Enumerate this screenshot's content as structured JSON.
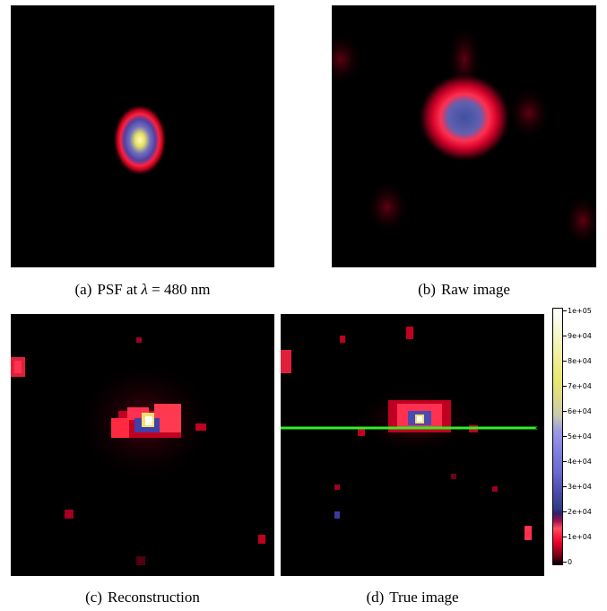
{
  "panels": [
    {
      "id": "a",
      "label": "(a)",
      "text_pre": "PSF at ",
      "lambda": "λ",
      "text_post": " = 480 nm"
    },
    {
      "id": "b",
      "label": "(b)",
      "text": "Raw image"
    },
    {
      "id": "c",
      "label": "(c)",
      "text": "Reconstruction"
    },
    {
      "id": "d",
      "label": "(d)",
      "text": "True image"
    }
  ],
  "colorbar": {
    "ticks": [
      "1e+05",
      "9e+04",
      "8e+04",
      "7e+04",
      "6e+04",
      "5e+04",
      "4e+04",
      "3e+04",
      "2e+04",
      "1e+04",
      "0"
    ]
  },
  "colors": {
    "background": "#000000",
    "profile_line": "#33ee22"
  }
}
